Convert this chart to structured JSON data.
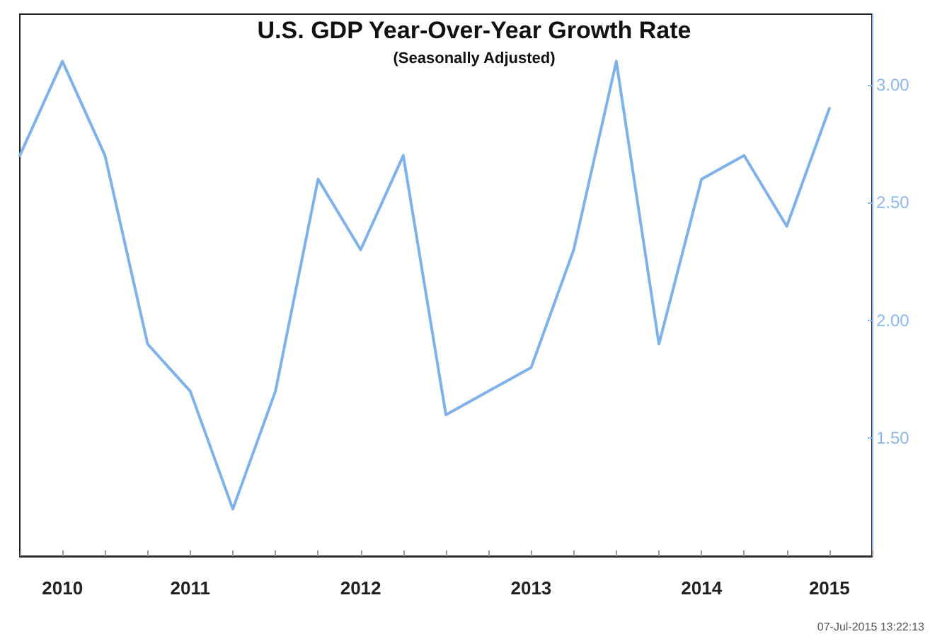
{
  "chart_data": {
    "type": "line",
    "title": "U.S. GDP Year-Over-Year Growth Rate",
    "subtitle": "(Seasonally Adjusted)",
    "categories": [
      null,
      "2010",
      null,
      null,
      "2011",
      null,
      null,
      null,
      "2012",
      null,
      null,
      null,
      "2013",
      null,
      null,
      null,
      "2014",
      null,
      null,
      "2015",
      null
    ],
    "series": [
      {
        "color": "#7fb2e8",
        "values": [
          2.7,
          3.1,
          2.7,
          1.9,
          1.7,
          1.2,
          1.7,
          2.6,
          2.3,
          2.7,
          1.6,
          1.7,
          1.8,
          2.3,
          3.1,
          1.9,
          2.6,
          2.7,
          2.4,
          2.9,
          null
        ]
      }
    ],
    "ylim": [
      1,
      3.3
    ],
    "yticks": [
      {
        "value": 1.5,
        "label": "1.50"
      },
      {
        "value": 2,
        "label": "2.00"
      },
      {
        "value": 2.5,
        "label": "2.50"
      },
      {
        "value": 3,
        "label": "3.00"
      }
    ],
    "grid": false,
    "marker": "none",
    "line_style": "solid",
    "annotations": [
      "07-Jul-2015 13:22:13"
    ]
  }
}
